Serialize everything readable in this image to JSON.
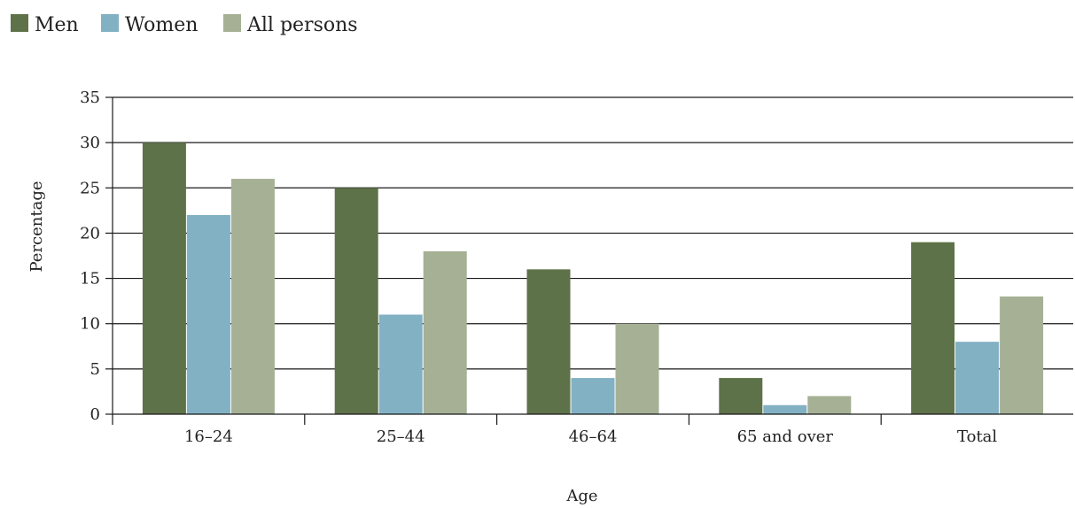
{
  "chart_data": {
    "type": "bar",
    "title": "",
    "xlabel": "Age",
    "ylabel": "Percentage",
    "categories": [
      "16–24",
      "25–44",
      "46–64",
      "65 and over",
      "Total"
    ],
    "series": [
      {
        "name": "Men",
        "color": "#5e7249",
        "values": [
          30,
          25,
          16,
          4,
          19
        ]
      },
      {
        "name": "Women",
        "color": "#82b1c4",
        "values": [
          22,
          11,
          4,
          1,
          8
        ]
      },
      {
        "name": "All persons",
        "color": "#a5b095",
        "values": [
          26,
          18,
          10,
          2,
          13
        ]
      }
    ],
    "ylim": [
      0,
      35
    ],
    "yticks": [
      "0",
      "5",
      "10",
      "15",
      "20",
      "25",
      "30",
      "35"
    ],
    "grid": true,
    "legend_position": "top-left"
  }
}
